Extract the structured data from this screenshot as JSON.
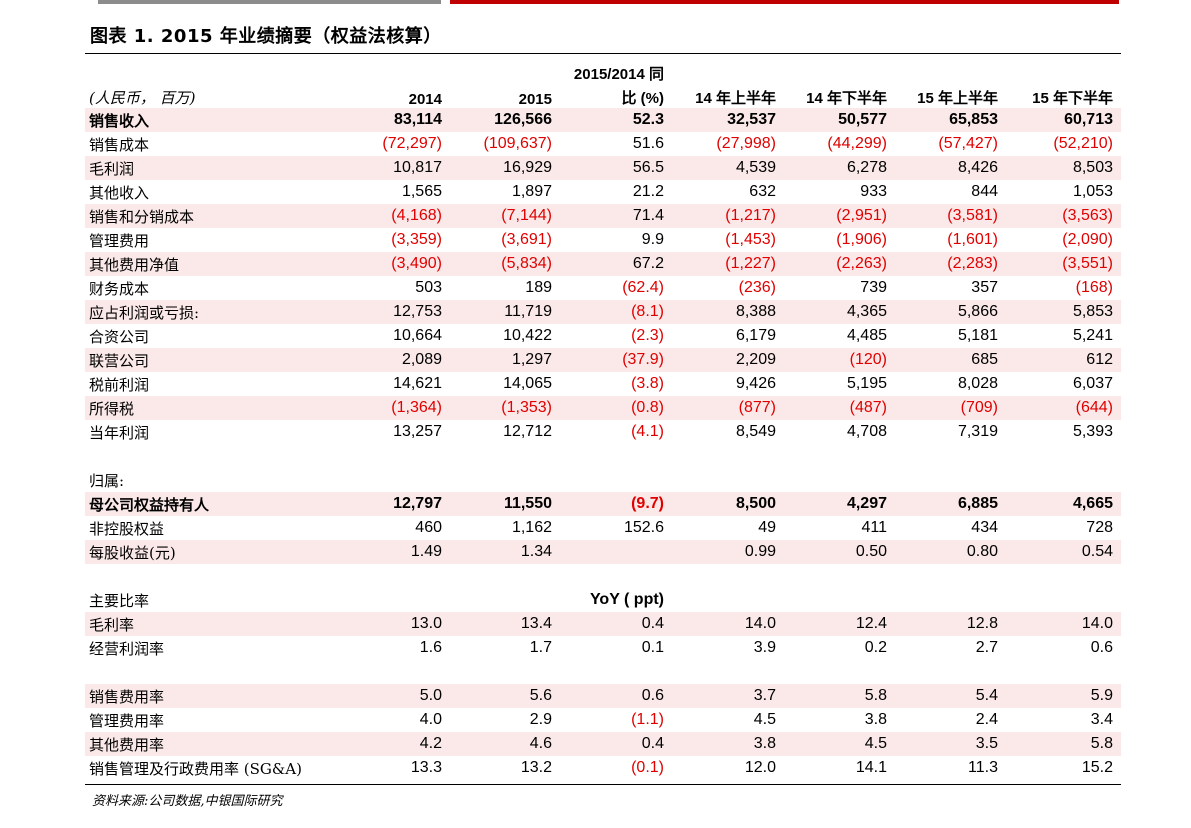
{
  "title": "图表 1. 2015 年业绩摘要（权益法核算）",
  "header": {
    "unit": "(人民币， 百万)",
    "yoy_top": "2015/2014 同",
    "cols": [
      "2014",
      "2015",
      "比 (%)",
      "14 年上半年",
      "14 年下半年",
      "15 年上半年",
      "15 年下半年"
    ]
  },
  "rows": [
    {
      "label": "销售收入",
      "values": [
        "83,114",
        "126,566",
        "52.3",
        "32,537",
        "50,577",
        "65,853",
        "60,713"
      ],
      "shade": true,
      "bold": true
    },
    {
      "label": "销售成本",
      "values": [
        "(72,297)",
        "(109,637)",
        "51.6",
        "(27,998)",
        "(44,299)",
        "(57,427)",
        "(52,210)"
      ],
      "shade": false,
      "bold": false
    },
    {
      "label": "毛利润",
      "values": [
        "10,817",
        "16,929",
        "56.5",
        "4,539",
        "6,278",
        "8,426",
        "8,503"
      ],
      "shade": true,
      "bold": false
    },
    {
      "label": "其他收入",
      "values": [
        "1,565",
        "1,897",
        "21.2",
        "632",
        "933",
        "844",
        "1,053"
      ],
      "shade": false,
      "bold": false
    },
    {
      "label": "销售和分销成本",
      "values": [
        "(4,168)",
        "(7,144)",
        "71.4",
        "(1,217)",
        "(2,951)",
        "(3,581)",
        "(3,563)"
      ],
      "shade": true,
      "bold": false
    },
    {
      "label": "管理费用",
      "values": [
        "(3,359)",
        "(3,691)",
        "9.9",
        "(1,453)",
        "(1,906)",
        "(1,601)",
        "(2,090)"
      ],
      "shade": false,
      "bold": false
    },
    {
      "label": "其他费用净值",
      "values": [
        "(3,490)",
        "(5,834)",
        "67.2",
        "(1,227)",
        "(2,263)",
        "(2,283)",
        "(3,551)"
      ],
      "shade": true,
      "bold": false
    },
    {
      "label": "财务成本",
      "values": [
        "503",
        "189",
        "(62.4)",
        "(236)",
        "739",
        "357",
        "(168)"
      ],
      "shade": false,
      "bold": false
    },
    {
      "label": "应占利润或亏损:",
      "values": [
        "12,753",
        "11,719",
        "(8.1)",
        "8,388",
        "4,365",
        "5,866",
        "5,853"
      ],
      "shade": true,
      "bold": false
    },
    {
      "label": "合资公司",
      "values": [
        "10,664",
        "10,422",
        "(2.3)",
        "6,179",
        "4,485",
        "5,181",
        "5,241"
      ],
      "shade": false,
      "bold": false
    },
    {
      "label": "联营公司",
      "values": [
        "2,089",
        "1,297",
        "(37.9)",
        "2,209",
        "(120)",
        "685",
        "612"
      ],
      "shade": true,
      "bold": false
    },
    {
      "label": "税前利润",
      "values": [
        "14,621",
        "14,065",
        "(3.8)",
        "9,426",
        "5,195",
        "8,028",
        "6,037"
      ],
      "shade": false,
      "bold": false
    },
    {
      "label": "所得税",
      "values": [
        "(1,364)",
        "(1,353)",
        "(0.8)",
        "(877)",
        "(487)",
        "(709)",
        "(644)"
      ],
      "shade": true,
      "bold": false
    },
    {
      "label": "当年利润",
      "values": [
        "13,257",
        "12,712",
        "(4.1)",
        "8,549",
        "4,708",
        "7,319",
        "5,393"
      ],
      "shade": false,
      "bold": false
    }
  ],
  "attrib_label": "归属:",
  "rows2": [
    {
      "label": "母公司权益持有人",
      "values": [
        "12,797",
        "11,550",
        "(9.7)",
        "8,500",
        "4,297",
        "6,885",
        "4,665"
      ],
      "shade": true,
      "bold": true
    },
    {
      "label": "非控股权益",
      "values": [
        "460",
        "1,162",
        "152.6",
        "49",
        "411",
        "434",
        "728"
      ],
      "shade": false,
      "bold": false
    },
    {
      "label": "每股收益(元)",
      "values": [
        "1.49",
        "1.34",
        "",
        "0.99",
        "0.50",
        "0.80",
        "0.54"
      ],
      "shade": true,
      "bold": false
    }
  ],
  "ratios_label": "主要比率",
  "ratios_yoy": "YoY ( ppt)",
  "rows3": [
    {
      "label": "毛利率",
      "values": [
        "13.0",
        "13.4",
        "0.4",
        "14.0",
        "12.4",
        "12.8",
        "14.0"
      ],
      "shade": true,
      "bold": false
    },
    {
      "label": "经营利润率",
      "values": [
        "1.6",
        "1.7",
        "0.1",
        "3.9",
        "0.2",
        "2.7",
        "0.6"
      ],
      "shade": false,
      "bold": false
    }
  ],
  "rows4": [
    {
      "label": "销售费用率",
      "values": [
        "5.0",
        "5.6",
        "0.6",
        "3.7",
        "5.8",
        "5.4",
        "5.9"
      ],
      "shade": true,
      "bold": false
    },
    {
      "label": "管理费用率",
      "values": [
        "4.0",
        "2.9",
        "(1.1)",
        "4.5",
        "3.8",
        "2.4",
        "3.4"
      ],
      "shade": false,
      "bold": false
    },
    {
      "label": "其他费用率",
      "values": [
        "4.2",
        "4.6",
        "0.4",
        "3.8",
        "4.5",
        "3.5",
        "5.8"
      ],
      "shade": true,
      "bold": false
    },
    {
      "label": "销售管理及行政费用率 (SG&A)",
      "values": [
        "13.3",
        "13.2",
        "(0.1)",
        "12.0",
        "14.1",
        "11.3",
        "15.2"
      ],
      "shade": false,
      "bold": false
    }
  ],
  "source": "资料来源:公司数据,中银国际研究",
  "colors": {
    "negative": "#e00000",
    "shade": "#fbe9e9",
    "accent_bar": "#c00000",
    "gray_bar": "#8c8c8c"
  }
}
